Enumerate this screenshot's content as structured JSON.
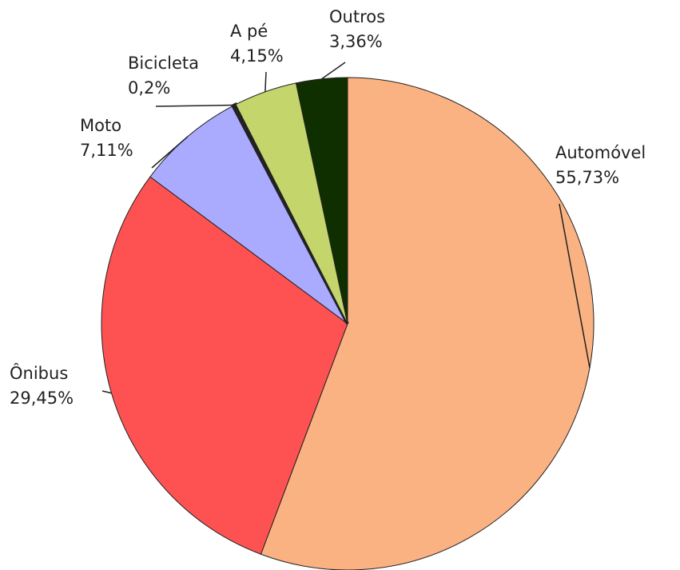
{
  "chart_data": {
    "type": "pie",
    "categories": [
      "Automóvel",
      "Ônibus",
      "Moto",
      "Bicicleta",
      "A pé",
      "Outros"
    ],
    "values": [
      55.73,
      29.45,
      7.11,
      0.2,
      4.15,
      3.36
    ],
    "value_labels": [
      "55,73%",
      "29,45%",
      "7,11%",
      "0,2%",
      "4,15%",
      "3,36%"
    ],
    "colors": [
      "#fbb282",
      "#fe5252",
      "#aaaaff",
      "#111111",
      "#c3d56b",
      "#0f2f00"
    ]
  }
}
